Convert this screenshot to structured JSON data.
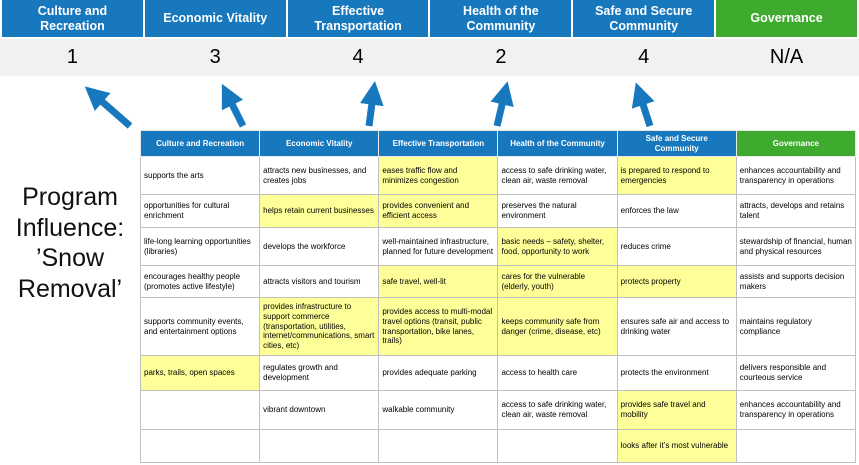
{
  "colors": {
    "header_blue": "#1878BE",
    "header_green": "#3FAB2E",
    "score_bg": "#F1F1F1",
    "highlight": "#FFFF99",
    "arrow": "#1878BE",
    "border": "#C0C0C0"
  },
  "program_label": "Program\nInfluence:\n’Snow\nRemoval’",
  "pillars": [
    {
      "name": "Culture and Recreation",
      "score": "1"
    },
    {
      "name": "Economic Vitality",
      "score": "3"
    },
    {
      "name": "Effective Transportation",
      "score": "4"
    },
    {
      "name": "Health of the Community",
      "score": "2"
    },
    {
      "name": "Safe and Secure Community",
      "score": "4"
    },
    {
      "name": "Governance",
      "score": "N/A"
    }
  ],
  "matrix": {
    "headers": [
      "Culture and Recreation",
      "Economic Vitality",
      "Effective Transportation",
      "Health of the Community",
      "Safe and Secure Community",
      "Governance"
    ],
    "rows": [
      [
        {
          "text": "supports the arts",
          "hl": false
        },
        {
          "text": "attracts new businesses, and creates jobs",
          "hl": false
        },
        {
          "text": "eases traffic flow and minimizes congestion",
          "hl": true
        },
        {
          "text": "access to safe drinking water, clean air, waste removal",
          "hl": false
        },
        {
          "text": "is prepared to respond to emergencies",
          "hl": true
        },
        {
          "text": "enhances accountability and transparency in operations",
          "hl": false
        }
      ],
      [
        {
          "text": "opportunities for cultural enrichment",
          "hl": false
        },
        {
          "text": "helps retain current businesses",
          "hl": true
        },
        {
          "text": "provides convenient and efficient access",
          "hl": true
        },
        {
          "text": "preserves the natural environment",
          "hl": false
        },
        {
          "text": "enforces the law",
          "hl": false
        },
        {
          "text": "attracts, develops and retains talent",
          "hl": false
        }
      ],
      [
        {
          "text": "life-long learning opportunities (libraries)",
          "hl": false
        },
        {
          "text": "develops the workforce",
          "hl": false
        },
        {
          "text": "well-maintained infrastructure, planned for future development",
          "hl": false
        },
        {
          "text": "basic needs – safety, shelter, food, opportunity to work",
          "hl": true
        },
        {
          "text": "reduces crime",
          "hl": false
        },
        {
          "text": "stewardship of financial, human and physical resources",
          "hl": false
        }
      ],
      [
        {
          "text": "encourages healthy people (promotes active lifestyle)",
          "hl": false
        },
        {
          "text": "attracts visitors and tourism",
          "hl": false
        },
        {
          "text": "safe travel, well-lit",
          "hl": true
        },
        {
          "text": "cares for the vulnerable (elderly, youth)",
          "hl": true
        },
        {
          "text": "protects property",
          "hl": true
        },
        {
          "text": "assists and supports decision makers",
          "hl": false
        }
      ],
      [
        {
          "text": "supports community events, and entertainment options",
          "hl": false
        },
        {
          "text": "provides infrastructure to support commerce (transportation, utilities, internet/communications, smart cities, etc)",
          "hl": true
        },
        {
          "text": "provides access to multi-modal travel options (transit, public transportation, bike lanes, trails)",
          "hl": true
        },
        {
          "text": "keeps community safe from danger (crime, disease, etc)",
          "hl": true
        },
        {
          "text": "ensures safe air and access to drinking water",
          "hl": false
        },
        {
          "text": "maintains regulatory compliance",
          "hl": false
        }
      ],
      [
        {
          "text": "parks, trails, open spaces",
          "hl": true
        },
        {
          "text": "regulates growth and development",
          "hl": false
        },
        {
          "text": "provides adequate parking",
          "hl": false
        },
        {
          "text": "access to health care",
          "hl": false
        },
        {
          "text": "protects the environment",
          "hl": false
        },
        {
          "text": "delivers responsible and courteous service",
          "hl": false
        }
      ],
      [
        {
          "text": "",
          "hl": false
        },
        {
          "text": "vibrant downtown",
          "hl": false
        },
        {
          "text": "walkable community",
          "hl": false
        },
        {
          "text": "access to safe drinking water, clean air, waste removal",
          "hl": false
        },
        {
          "text": "provides safe travel and mobility",
          "hl": true
        },
        {
          "text": "enhances accountability and transparency in operations",
          "hl": false
        }
      ],
      [
        {
          "text": "",
          "hl": false
        },
        {
          "text": "",
          "hl": false
        },
        {
          "text": "",
          "hl": false
        },
        {
          "text": "",
          "hl": false
        },
        {
          "text": "looks after it’s most vulnerable",
          "hl": true
        },
        {
          "text": "",
          "hl": false
        }
      ]
    ]
  }
}
